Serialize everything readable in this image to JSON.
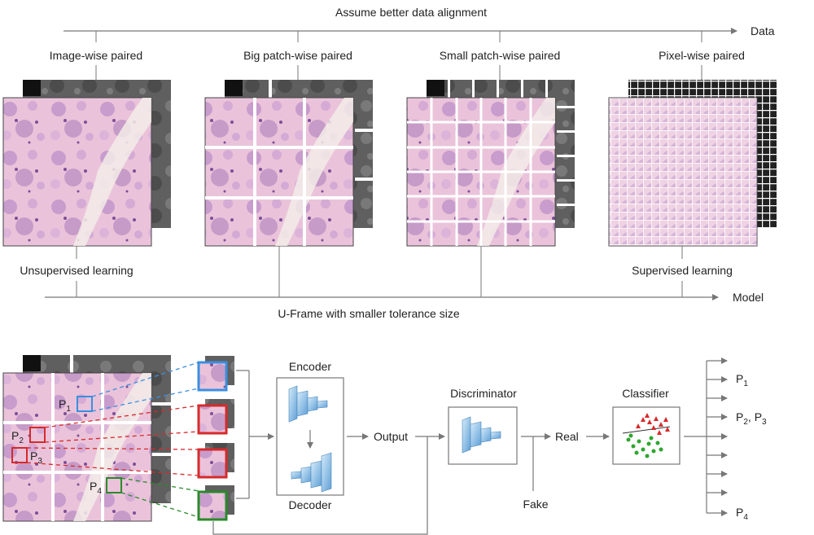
{
  "top": {
    "axis_data_title": "Assume better data alignment",
    "axis_data_label": "Data",
    "pairing_types": [
      "Image-wise paired",
      "Big patch-wise paired",
      "Small patch-wise paired",
      "Pixel-wise paired"
    ],
    "learning_left": "Unsupervised learning",
    "learning_right": "Supervised learning",
    "axis_model_label": "Model",
    "axis_model_title": "U-Frame with smaller tolerance size"
  },
  "bottom": {
    "patch_labels": [
      {
        "letter": "P",
        "sub": "1"
      },
      {
        "letter": "P",
        "sub": "2"
      },
      {
        "letter": "P",
        "sub": "3"
      },
      {
        "letter": "P",
        "sub": "4"
      }
    ],
    "encoder": "Encoder",
    "decoder": "Decoder",
    "output": "Output",
    "discriminator": "Discriminator",
    "real": "Real",
    "fake": "Fake",
    "classifier": "Classifier",
    "results": {
      "r1": {
        "letter": "P",
        "sub": "1"
      },
      "r2a": {
        "letter": "P",
        "sub": "2"
      },
      "r2sep": ", ",
      "r2b": {
        "letter": "P",
        "sub": "3"
      },
      "r3": {
        "letter": "P",
        "sub": "4"
      }
    }
  },
  "colors": {
    "tissue_bg": "#e9bfd8",
    "tissue_dark": "#a774b8",
    "gray_scan": "#6a6a6a",
    "blue_box": "#3a8fe0",
    "red_box": "#d62a2a",
    "green_box": "#2a8a2a",
    "arrow": "#777777"
  }
}
